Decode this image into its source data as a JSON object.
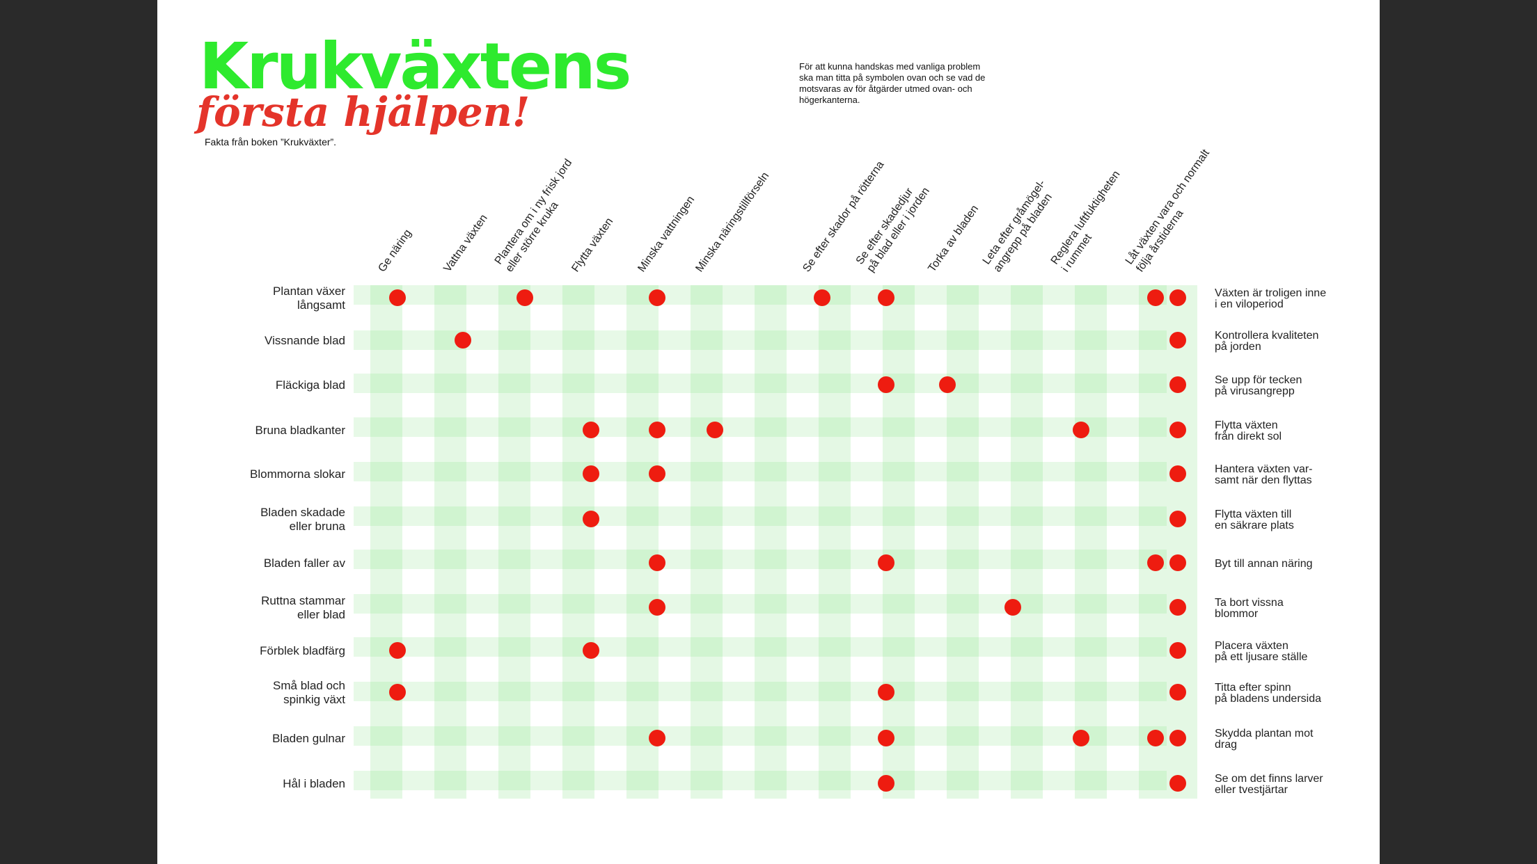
{
  "title": "Krukväxtens",
  "subtitle": "första hjälpen!",
  "source": "Fakta från boken ”Krukväxter”.",
  "intro": "För att kunna handskas med vanliga problem\nska man titta på symbolen ovan och se vad de\nmotsvaras av för åtgärder utmed ovan- och\nhögerkanterna.",
  "colors": {
    "title_green": "#2eea2e",
    "subtitle_red": "#e4342a",
    "dot_red": "#ee1c10",
    "band_light": "#e4f8e4",
    "band_mid": "#d0f4d0"
  },
  "columns": [
    [
      "Ge näring"
    ],
    [
      "Vattna växten"
    ],
    [
      "Plantera om i ny frisk jord",
      "eller större kruka"
    ],
    [
      "Flytta växten"
    ],
    [
      "Minska vattningen"
    ],
    [
      "Minska näringstillförseln"
    ],
    [
      "Se efter skador på rötterna"
    ],
    [
      "Se efter skadedjur",
      "på blad eller i jorden"
    ],
    [
      "Torka av bladen"
    ],
    [
      "Leta efter gråmögel-",
      "angrepp på bladen"
    ],
    [
      "Reglera luftfuktigheten",
      "i rummet"
    ],
    [
      "Låt växten vara och normalt",
      "följa årstiderna"
    ]
  ],
  "rows": [
    {
      "label": [
        "Plantan växer",
        "långsamt"
      ],
      "note": [
        "Växten är troligen inne",
        "i en viloperiod"
      ]
    },
    {
      "label": [
        "Vissnande blad"
      ],
      "note": [
        "Kontrollera kvaliteten",
        "på jorden"
      ]
    },
    {
      "label": [
        "Fläckiga blad"
      ],
      "note": [
        "Se upp för tecken",
        "på virusangrepp"
      ]
    },
    {
      "label": [
        "Bruna bladkanter"
      ],
      "note": [
        "Flytta växten",
        "från direkt sol"
      ]
    },
    {
      "label": [
        "Blommorna slokar"
      ],
      "note": [
        "Hantera växten var-",
        "samt när den flyttas"
      ]
    },
    {
      "label": [
        "Bladen skadade",
        "eller bruna"
      ],
      "note": [
        "Flytta växten till",
        "en säkrare plats"
      ]
    },
    {
      "label": [
        "Bladen faller av"
      ],
      "note": [
        "Byt till annan näring"
      ]
    },
    {
      "label": [
        "Ruttna stammar",
        "eller blad"
      ],
      "note": [
        "Ta bort vissna",
        "blommor"
      ]
    },
    {
      "label": [
        "Förblek bladfärg"
      ],
      "note": [
        "Placera växten",
        "på ett ljusare ställe"
      ]
    },
    {
      "label": [
        "Små blad och",
        "spinkig växt"
      ],
      "note": [
        "Titta efter spinn",
        "på bladens undersida"
      ]
    },
    {
      "label": [
        "Bladen gulnar"
      ],
      "note": [
        "Skydda plantan mot",
        "drag"
      ]
    },
    {
      "label": [
        "Hål i bladen"
      ],
      "note": [
        "Se om det finns larver",
        "eller tvestjärtar"
      ]
    }
  ],
  "marks": [
    {
      "row": 0,
      "cols": [
        0,
        2,
        4,
        6,
        7,
        11
      ]
    },
    {
      "row": 1,
      "cols": [
        1
      ]
    },
    {
      "row": 2,
      "cols": [
        7,
        8
      ]
    },
    {
      "row": 3,
      "cols": [
        3,
        4,
        5,
        10
      ]
    },
    {
      "row": 4,
      "cols": [
        3,
        4
      ]
    },
    {
      "row": 5,
      "cols": [
        3
      ]
    },
    {
      "row": 6,
      "cols": [
        4,
        7,
        11
      ]
    },
    {
      "row": 7,
      "cols": [
        4,
        9
      ]
    },
    {
      "row": 8,
      "cols": [
        0,
        3
      ]
    },
    {
      "row": 9,
      "cols": [
        0,
        7
      ]
    },
    {
      "row": 10,
      "cols": [
        4,
        7,
        10,
        11
      ]
    },
    {
      "row": 11,
      "cols": [
        7
      ]
    }
  ]
}
